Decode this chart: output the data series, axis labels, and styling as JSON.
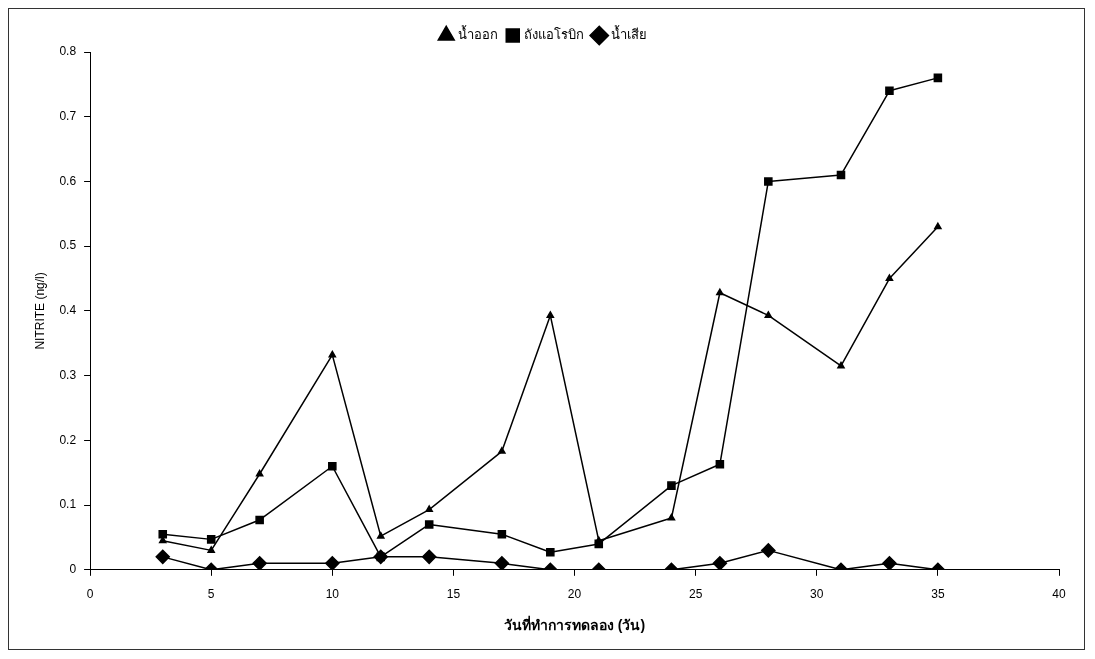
{
  "chart_data": {
    "type": "line",
    "xlabel": "วันที่ทำการทดลอง (วัน)",
    "ylabel": "NITRITE (ng/l)",
    "x": [
      3,
      5,
      7,
      10,
      12,
      14,
      17,
      19,
      21,
      24,
      26,
      28,
      31,
      33,
      35
    ],
    "series": [
      {
        "name": "น้ำเสีย",
        "color": "#000000",
        "marker": "diamond",
        "values": [
          0.02,
          0,
          0.01,
          0.01,
          0.02,
          0.02,
          0.01,
          0,
          0,
          0,
          0.01,
          0.03,
          0,
          0.01,
          0
        ]
      },
      {
        "name": "ถังแอโรบิก",
        "color": "#000000",
        "marker": "square",
        "values": [
          0.055,
          0.047,
          0.077,
          0.16,
          0.02,
          0.07,
          0.055,
          0.027,
          0.04,
          0.13,
          0.163,
          0.6,
          0.61,
          0.74,
          0.76
        ]
      },
      {
        "name": "น้ำออก",
        "color": "#000000",
        "marker": "triangle",
        "values": [
          0.045,
          0.03,
          0.148,
          0.332,
          0.052,
          0.093,
          0.183,
          0.393,
          0.045,
          0.08,
          0.428,
          0.393,
          0.315,
          0.45,
          0.53
        ]
      }
    ],
    "xlim": [
      0,
      40
    ],
    "xticks": [
      0,
      5,
      10,
      15,
      20,
      25,
      30,
      35,
      40
    ],
    "ylim": [
      0,
      0.8
    ],
    "yticks": [
      0,
      0.1,
      0.2,
      0.3,
      0.4,
      0.5,
      0.6,
      0.7,
      0.8
    ],
    "grid": false,
    "legend": "top",
    "line_style": "solid"
  }
}
